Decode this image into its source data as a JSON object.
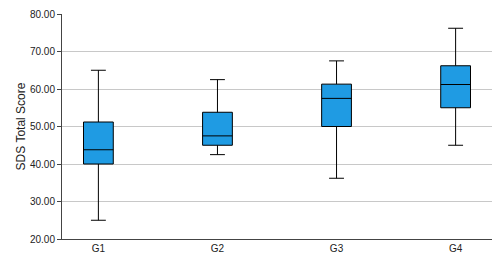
{
  "chart_data": {
    "type": "box",
    "y_label": "SDS Total Score",
    "categories": [
      "G1",
      "G2",
      "G3",
      "G4"
    ],
    "min": [
      25,
      42.5,
      36.2,
      45
    ],
    "q1": [
      40,
      45,
      50,
      55
    ],
    "median": [
      43.8,
      47.5,
      57.5,
      61.2
    ],
    "q3": [
      51.2,
      53.8,
      61.3,
      66.2
    ],
    "max": [
      65,
      62.5,
      67.5,
      76.2
    ],
    "color": "#1f9be3",
    "ylim": [
      20,
      80
    ],
    "yticks": [
      {
        "value": 20,
        "label": "20.00"
      },
      {
        "value": 30,
        "label": "30.00"
      },
      {
        "value": 40,
        "label": "40.00"
      },
      {
        "value": 50,
        "label": "50.00"
      },
      {
        "value": 60,
        "label": "60.00"
      },
      {
        "value": 70,
        "label": "70.00"
      },
      {
        "value": 80,
        "label": "80.00"
      }
    ],
    "grid": true
  }
}
